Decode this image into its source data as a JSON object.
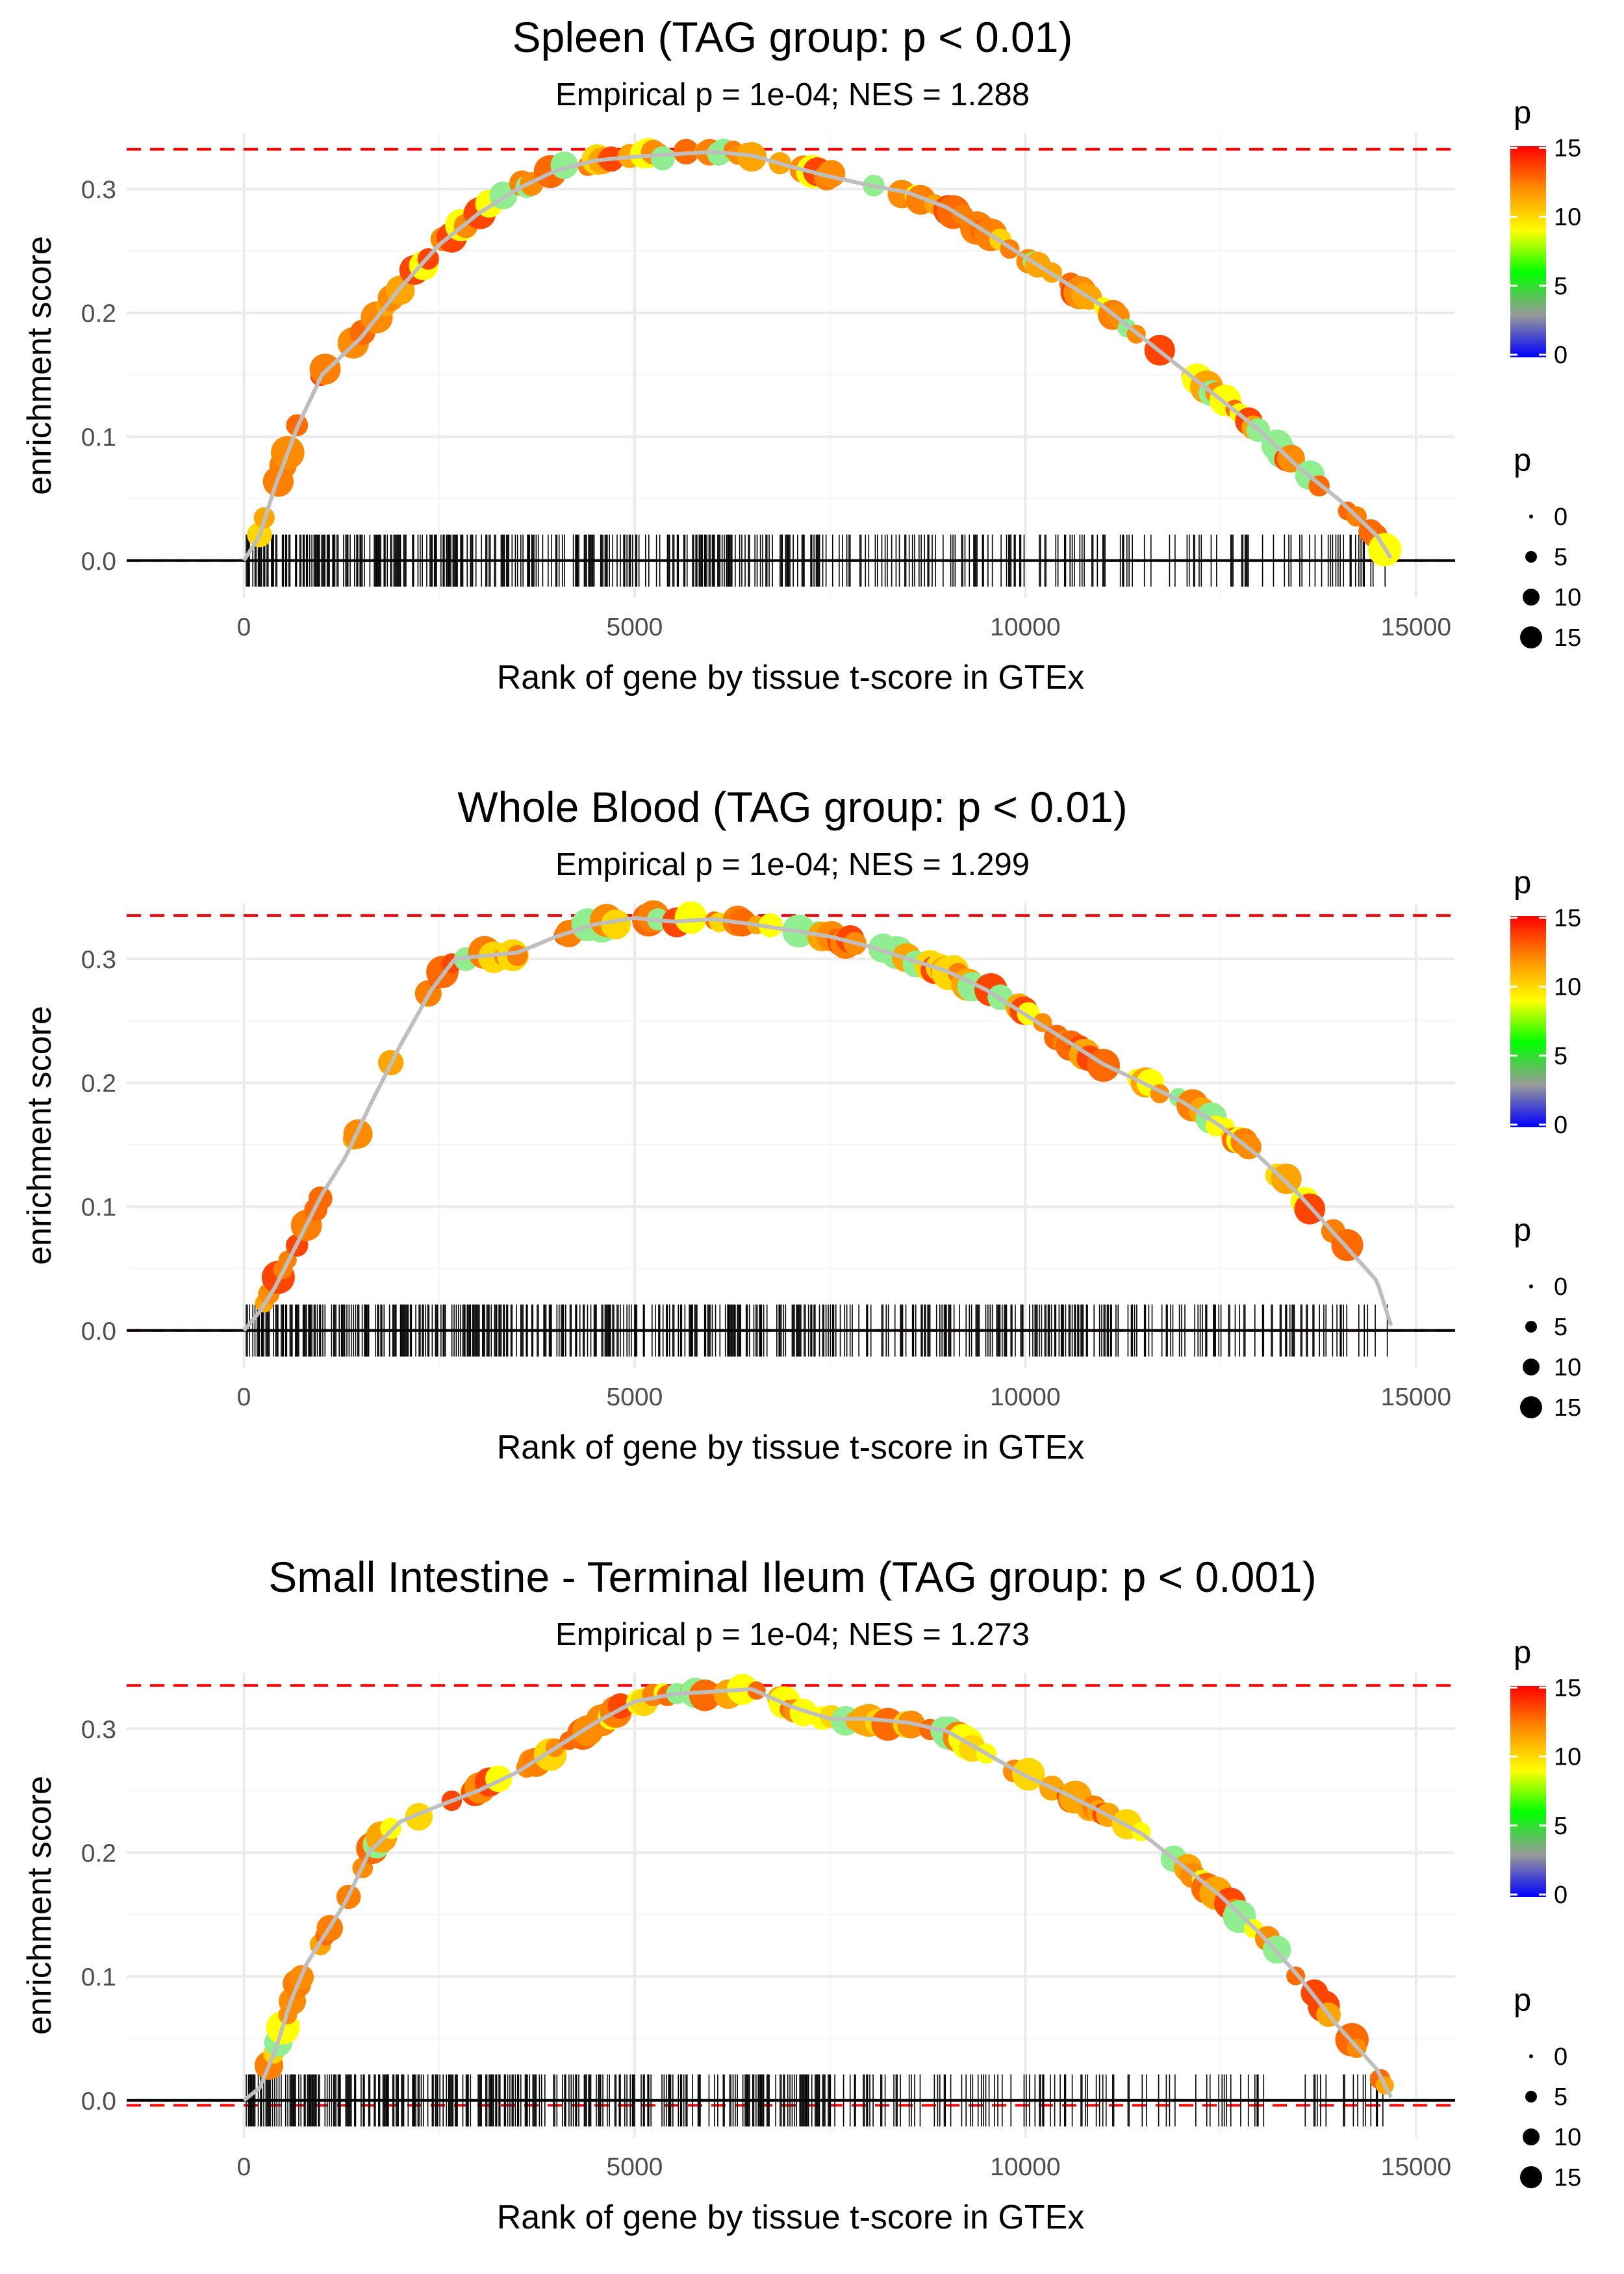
{
  "chart_data": [
    {
      "type": "line",
      "title": "Spleen (TAG group: p < 0.01)",
      "subtitle": "Empirical p = 1e-04; NES = 1.288",
      "xlabel": "Rank of gene by tissue t-score in GTEx",
      "ylabel": "enrichment score",
      "xlim": [
        -1500,
        15500
      ],
      "ylim": [
        -0.03,
        0.345
      ],
      "x_ticks": [
        0,
        5000,
        10000,
        15000
      ],
      "x_tick_labels": [
        "0",
        "5000",
        "10000",
        "15000"
      ],
      "y_ticks": [
        0.0,
        0.1,
        0.2,
        0.3
      ],
      "y_tick_labels": [
        "0.0",
        "0.1",
        "0.2",
        "0.3"
      ],
      "grid": true,
      "max_es_line": 0.332,
      "min_es_line": 0.0,
      "curve": {
        "x": [
          0,
          200,
          400,
          700,
          1000,
          1500,
          2000,
          2500,
          3000,
          3500,
          4000,
          4500,
          5000,
          5500,
          6000,
          6500,
          7000,
          7500,
          8000,
          8500,
          9000,
          9500,
          10000,
          10500,
          11000,
          11500,
          12000,
          12500,
          13000,
          13500,
          14000,
          14500,
          14700
        ],
        "y": [
          0.0,
          0.02,
          0.06,
          0.11,
          0.15,
          0.18,
          0.22,
          0.255,
          0.28,
          0.3,
          0.315,
          0.323,
          0.326,
          0.328,
          0.33,
          0.327,
          0.318,
          0.31,
          0.303,
          0.297,
          0.285,
          0.265,
          0.245,
          0.225,
          0.205,
          0.18,
          0.155,
          0.13,
          0.105,
          0.075,
          0.05,
          0.02,
          0.0
        ]
      },
      "hit_density": [
        1.0,
        0.85,
        0.65,
        0.4
      ],
      "hit_seed": 11
    },
    {
      "type": "line",
      "title": "Whole Blood (TAG group: p < 0.01)",
      "subtitle": "Empirical p = 1e-04; NES = 1.299",
      "xlabel": "Rank of gene by tissue t-score in GTEx",
      "ylabel": "enrichment score",
      "xlim": [
        -1500,
        15500
      ],
      "ylim": [
        -0.03,
        0.345
      ],
      "x_ticks": [
        0,
        5000,
        10000,
        15000
      ],
      "x_tick_labels": [
        "0",
        "5000",
        "10000",
        "15000"
      ],
      "y_ticks": [
        0.0,
        0.1,
        0.2,
        0.3
      ],
      "y_tick_labels": [
        "0.0",
        "0.1",
        "0.2",
        "0.3"
      ],
      "grid": true,
      "max_es_line": 0.335,
      "min_es_line": 0.0,
      "curve": {
        "x": [
          0,
          200,
          400,
          600,
          800,
          1000,
          1300,
          1600,
          2000,
          2400,
          2700,
          3000,
          3500,
          4000,
          4500,
          5000,
          5500,
          6000,
          6500,
          7000,
          7500,
          8000,
          8500,
          9000,
          9500,
          10000,
          10500,
          11000,
          11500,
          12000,
          12500,
          13000,
          13500,
          14000,
          14500,
          14700
        ],
        "y": [
          0.0,
          0.015,
          0.035,
          0.06,
          0.085,
          0.11,
          0.14,
          0.18,
          0.23,
          0.275,
          0.3,
          0.302,
          0.305,
          0.318,
          0.328,
          0.333,
          0.33,
          0.332,
          0.328,
          0.323,
          0.318,
          0.31,
          0.3,
          0.29,
          0.275,
          0.255,
          0.235,
          0.215,
          0.2,
          0.185,
          0.165,
          0.14,
          0.11,
          0.075,
          0.04,
          0.0
        ]
      },
      "hit_density": [
        1.0,
        0.9,
        0.75,
        0.55
      ],
      "hit_seed": 23
    },
    {
      "type": "line",
      "title": "Small Intestine - Terminal Ileum (TAG group: p < 0.001)",
      "subtitle": "Empirical p = 1e-04; NES = 1.273",
      "xlabel": "Rank of gene by tissue t-score in GTEx",
      "ylabel": "enrichment score",
      "xlim": [
        -1500,
        15500
      ],
      "ylim": [
        -0.03,
        0.345
      ],
      "x_ticks": [
        0,
        5000,
        10000,
        15000
      ],
      "x_tick_labels": [
        "0",
        "5000",
        "10000",
        "15000"
      ],
      "y_ticks": [
        0.0,
        0.1,
        0.2,
        0.3
      ],
      "y_tick_labels": [
        "0.0",
        "0.1",
        "0.2",
        "0.3"
      ],
      "grid": true,
      "max_es_line": 0.335,
      "min_es_line": -0.004,
      "curve": {
        "x": [
          0,
          200,
          400,
          600,
          800,
          1000,
          1300,
          1600,
          2000,
          2500,
          3000,
          3500,
          4000,
          4500,
          5000,
          5500,
          6000,
          6500,
          7000,
          7500,
          8000,
          8500,
          9000,
          9500,
          10000,
          10500,
          11000,
          11500,
          12000,
          12500,
          13000,
          13500,
          14000,
          14500,
          14700
        ],
        "y": [
          0.0,
          0.01,
          0.04,
          0.08,
          0.11,
          0.13,
          0.16,
          0.2,
          0.225,
          0.238,
          0.25,
          0.265,
          0.285,
          0.305,
          0.322,
          0.328,
          0.33,
          0.332,
          0.318,
          0.308,
          0.308,
          0.305,
          0.298,
          0.28,
          0.262,
          0.248,
          0.232,
          0.215,
          0.19,
          0.165,
          0.135,
          0.1,
          0.06,
          0.025,
          0.0
        ]
      },
      "hit_density": [
        1.0,
        0.85,
        0.45,
        0.3
      ],
      "hit_seed": 37
    }
  ],
  "legend": {
    "color_title": "p",
    "color_labels": [
      "15",
      "10",
      "5",
      "0"
    ],
    "size_title": "p",
    "size_labels": [
      "0",
      "5",
      "10",
      "15"
    ],
    "gradient_colors": [
      "#ff0000",
      "#ff8c00",
      "#ffff00",
      "#00ff00",
      "#999999",
      "#0000ff"
    ]
  },
  "colors": {
    "max_line": "#ff0000",
    "zero_line": "#000000",
    "curve": "#bebebe",
    "grid": "#ebebeb",
    "point_palette": [
      "#ff8c00",
      "#ffa500",
      "#ff7f00",
      "#ff4500",
      "#ffff00",
      "#ffd700",
      "#90ee90",
      "#ff6a00"
    ]
  }
}
